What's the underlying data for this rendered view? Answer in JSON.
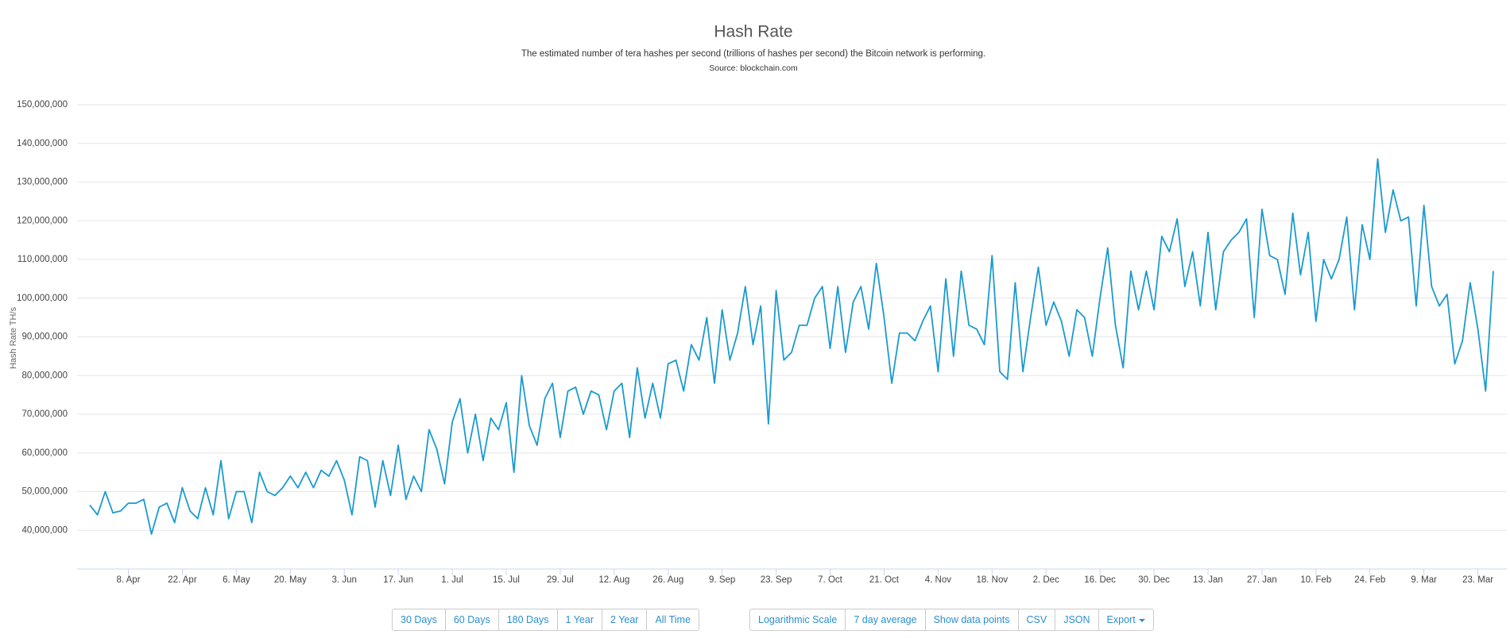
{
  "chart_data": {
    "type": "line",
    "title": "Hash Rate",
    "subtitle": "The estimated number of tera hashes per second (trillions of hashes per second) the Bitcoin network is performing.",
    "source": "Source: blockchain.com",
    "y_label": "Hash Rate TH/s",
    "color": "#1a9ad0",
    "grid": true,
    "ylim": [
      30000000,
      150000000
    ],
    "yticks": [
      {
        "value": 40000000,
        "label": "40,000,000"
      },
      {
        "value": 50000000,
        "label": "50,000,000"
      },
      {
        "value": 60000000,
        "label": "60,000,000"
      },
      {
        "value": 70000000,
        "label": "70,000,000"
      },
      {
        "value": 80000000,
        "label": "80,000,000"
      },
      {
        "value": 90000000,
        "label": "90,000,000"
      },
      {
        "value": 100000000,
        "label": "100,000,000"
      },
      {
        "value": 110000000,
        "label": "110,000,000"
      },
      {
        "value": 120000000,
        "label": "120,000,000"
      },
      {
        "value": 130000000,
        "label": "130,000,000"
      },
      {
        "value": 140000000,
        "label": "140,000,000"
      },
      {
        "value": 150000000,
        "label": "150,000,000"
      }
    ],
    "categories": [
      null,
      null,
      null,
      null,
      null,
      "8. Apr",
      null,
      null,
      null,
      null,
      null,
      null,
      "22. Apr",
      null,
      null,
      null,
      null,
      null,
      null,
      "6. May",
      null,
      null,
      null,
      null,
      null,
      null,
      "20. May",
      null,
      null,
      null,
      null,
      null,
      null,
      "3. Jun",
      null,
      null,
      null,
      null,
      null,
      null,
      "17. Jun",
      null,
      null,
      null,
      null,
      null,
      null,
      "1. Jul",
      null,
      null,
      null,
      null,
      null,
      null,
      "15. Jul",
      null,
      null,
      null,
      null,
      null,
      null,
      "29. Jul",
      null,
      null,
      null,
      null,
      null,
      null,
      "12. Aug",
      null,
      null,
      null,
      null,
      null,
      null,
      "26. Aug",
      null,
      null,
      null,
      null,
      null,
      null,
      "9. Sep",
      null,
      null,
      null,
      null,
      null,
      null,
      "23. Sep",
      null,
      null,
      null,
      null,
      null,
      null,
      "7. Oct",
      null,
      null,
      null,
      null,
      null,
      null,
      "21. Oct",
      null,
      null,
      null,
      null,
      null,
      null,
      "4. Nov",
      null,
      null,
      null,
      null,
      null,
      null,
      "18. Nov",
      null,
      null,
      null,
      null,
      null,
      null,
      "2. Dec",
      null,
      null,
      null,
      null,
      null,
      null,
      "16. Dec",
      null,
      null,
      null,
      null,
      null,
      null,
      "30. Dec",
      null,
      null,
      null,
      null,
      null,
      null,
      "13. Jan",
      null,
      null,
      null,
      null,
      null,
      null,
      "27. Jan",
      null,
      null,
      null,
      null,
      null,
      null,
      "10. Feb",
      null,
      null,
      null,
      null,
      null,
      null,
      "24. Feb",
      null,
      null,
      null,
      null,
      null,
      null,
      "9. Mar",
      null,
      null,
      null,
      null,
      null,
      null,
      "23. Mar",
      null,
      null
    ],
    "values": [
      46500000,
      44000000,
      50000000,
      44500000,
      45000000,
      47000000,
      47000000,
      48000000,
      39000000,
      46000000,
      47000000,
      42000000,
      51000000,
      45000000,
      43000000,
      51000000,
      44000000,
      58000000,
      43000000,
      50000000,
      50000000,
      42000000,
      55000000,
      50000000,
      49000000,
      51000000,
      54000000,
      51000000,
      55000000,
      51000000,
      55500000,
      54000000,
      58000000,
      53000000,
      44000000,
      59000000,
      58000000,
      46000000,
      58000000,
      49000000,
      62000000,
      48000000,
      54000000,
      50000000,
      66000000,
      61000000,
      52000000,
      68000000,
      74000000,
      60000000,
      70000000,
      58000000,
      69000000,
      66000000,
      73000000,
      55000000,
      80000000,
      67000000,
      62000000,
      74000000,
      78000000,
      64000000,
      76000000,
      77000000,
      70000000,
      76000000,
      75000000,
      66000000,
      76000000,
      78000000,
      64000000,
      82000000,
      69000000,
      78000000,
      69000000,
      83000000,
      84000000,
      76000000,
      88000000,
      84000000,
      95000000,
      78000000,
      97000000,
      84000000,
      91000000,
      103000000,
      88000000,
      98000000,
      67500000,
      102000000,
      84000000,
      86000000,
      93000000,
      93000000,
      100000000,
      103000000,
      87000000,
      103000000,
      86000000,
      99000000,
      103000000,
      92000000,
      109000000,
      95000000,
      78000000,
      91000000,
      91000000,
      89000000,
      94000000,
      98000000,
      81000000,
      105000000,
      85000000,
      107000000,
      93000000,
      92000000,
      88000000,
      111000000,
      81000000,
      79000000,
      104000000,
      81000000,
      95000000,
      108000000,
      93000000,
      99000000,
      94000000,
      85000000,
      97000000,
      95000000,
      85000000,
      100000000,
      113000000,
      93000000,
      82000000,
      107000000,
      97000000,
      107000000,
      97000000,
      116000000,
      112000000,
      120500000,
      103000000,
      112000000,
      98000000,
      117000000,
      97000000,
      112000000,
      115000000,
      117000000,
      120500000,
      95000000,
      123000000,
      111000000,
      110000000,
      101000000,
      122000000,
      106000000,
      117000000,
      94000000,
      110000000,
      105000000,
      110000000,
      121000000,
      97000000,
      119000000,
      110000000,
      136000000,
      117000000,
      128000000,
      120000000,
      121000000,
      98000000,
      124000000,
      103000000,
      98000000,
      101000000,
      83000000,
      89000000,
      104000000,
      92000000,
      76000000,
      107000000
    ]
  },
  "range_buttons": [
    "30 Days",
    "60 Days",
    "180 Days",
    "1 Year",
    "2 Year",
    "All Time"
  ],
  "option_buttons": [
    "Logarithmic Scale",
    "7 day average",
    "Show data points",
    "CSV",
    "JSON",
    "Export"
  ]
}
